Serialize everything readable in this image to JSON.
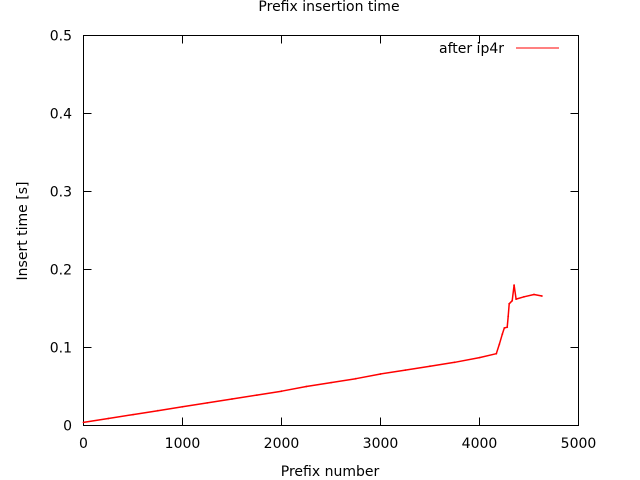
{
  "chart_data": {
    "type": "line",
    "title": "Prefix insertion time",
    "xlabel": "Prefix number",
    "ylabel": "Insert time [s]",
    "xlim": [
      0,
      5000
    ],
    "ylim": [
      0,
      0.5
    ],
    "xticks": [
      "0",
      "1000",
      "2000",
      "3000",
      "4000",
      "5000"
    ],
    "yticks": [
      "0",
      "0.1",
      "0.2",
      "0.3",
      "0.4",
      "0.5"
    ],
    "grid": false,
    "legend_position": "top-right",
    "series": [
      {
        "name": "after ip4r",
        "color": "#ff0000",
        "points": [
          [
            0,
            0.004
          ],
          [
            250,
            0.009
          ],
          [
            500,
            0.014
          ],
          [
            750,
            0.019
          ],
          [
            1000,
            0.024
          ],
          [
            1250,
            0.029
          ],
          [
            1500,
            0.034
          ],
          [
            1750,
            0.039
          ],
          [
            2000,
            0.044
          ],
          [
            2250,
            0.05
          ],
          [
            2500,
            0.055
          ],
          [
            2750,
            0.06
          ],
          [
            3000,
            0.066
          ],
          [
            3250,
            0.071
          ],
          [
            3500,
            0.076
          ],
          [
            3750,
            0.081
          ],
          [
            4000,
            0.087
          ],
          [
            4170,
            0.092
          ],
          [
            4200,
            0.104
          ],
          [
            4230,
            0.117
          ],
          [
            4250,
            0.125
          ],
          [
            4280,
            0.126
          ],
          [
            4290,
            0.14
          ],
          [
            4300,
            0.156
          ],
          [
            4330,
            0.16
          ],
          [
            4350,
            0.18
          ],
          [
            4370,
            0.162
          ],
          [
            4450,
            0.165
          ],
          [
            4550,
            0.168
          ],
          [
            4630,
            0.166
          ]
        ]
      }
    ]
  }
}
